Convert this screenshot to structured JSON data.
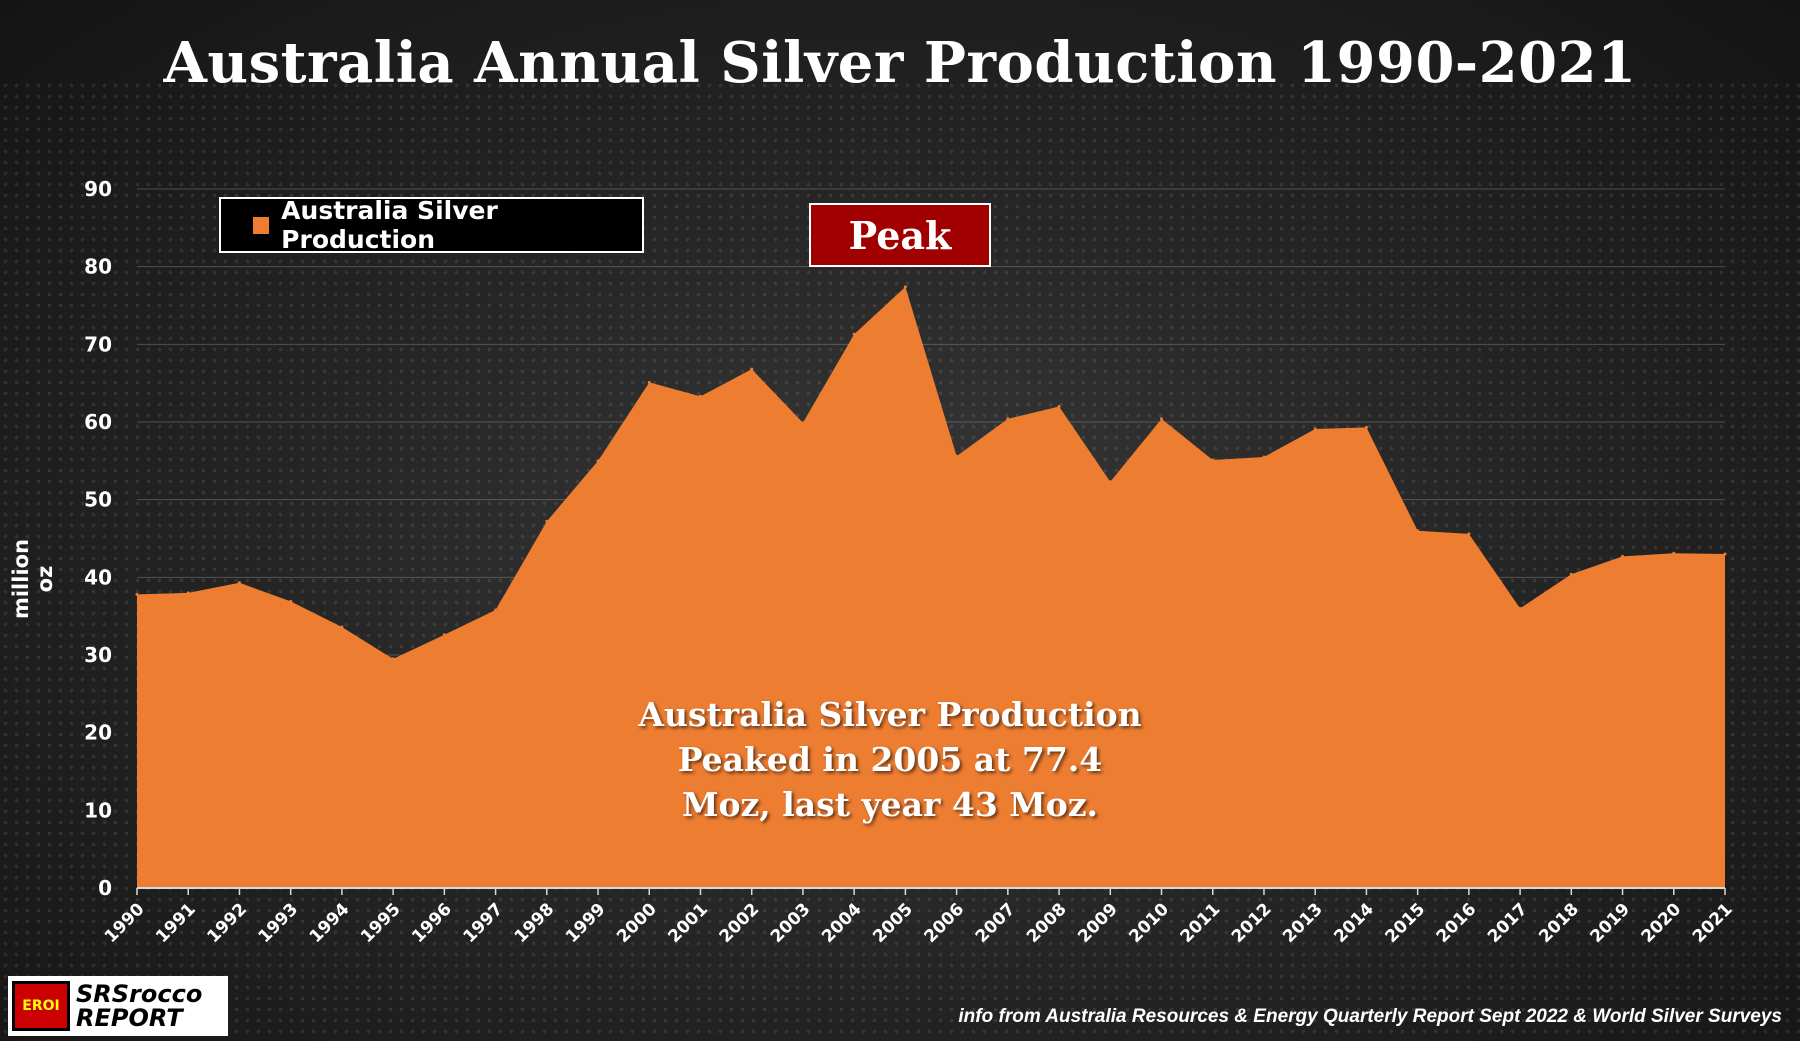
{
  "title": "Australia Annual Silver Production 1990-2021",
  "legend": {
    "label": "Australia Silver Production",
    "color": "#ed7d31"
  },
  "peak_label": "Peak",
  "annotation": {
    "lines": [
      "Australia Silver Production",
      "Peaked in 2005 at 77.4",
      "Moz, last year 43 Moz."
    ]
  },
  "logo": {
    "badge": "EROI",
    "line1": "SRSrocco",
    "line2": "REPORT"
  },
  "source": "info from Australia Resources & Energy Quarterly Report Sept 2022  & World Silver Surveys",
  "chart_data": {
    "type": "area",
    "title": "Australia Annual Silver Production 1990-2021",
    "ylabel": "million oz",
    "xlabel": "",
    "ylim": [
      0,
      90
    ],
    "yticks": [
      0,
      10,
      20,
      30,
      40,
      50,
      60,
      70,
      80,
      90
    ],
    "grid": true,
    "legend_position": "top-left",
    "categories": [
      "1990",
      "1991",
      "1992",
      "1993",
      "1994",
      "1995",
      "1996",
      "1997",
      "1998",
      "1999",
      "2000",
      "2001",
      "2002",
      "2003",
      "2004",
      "2005",
      "2006",
      "2007",
      "2008",
      "2009",
      "2010",
      "2011",
      "2012",
      "2013",
      "2014",
      "2015",
      "2016",
      "2017",
      "2018",
      "2019",
      "2020",
      "2021"
    ],
    "series": [
      {
        "name": "Australia Silver Production",
        "color": "#ed7d31",
        "values": [
          37.8,
          38.0,
          39.3,
          36.9,
          33.6,
          29.5,
          32.6,
          35.8,
          47.2,
          55.0,
          65.1,
          63.3,
          66.8,
          59.9,
          71.3,
          77.4,
          55.6,
          60.4,
          62.0,
          52.3,
          60.4,
          55.1,
          55.5,
          59.1,
          59.3,
          46.0,
          45.6,
          36.0,
          40.4,
          42.7,
          43.1,
          43.0
        ]
      }
    ]
  }
}
